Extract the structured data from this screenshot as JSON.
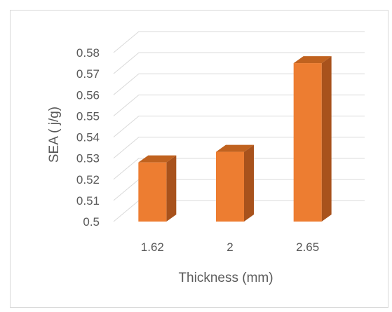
{
  "chart_data": {
    "type": "bar",
    "style": "3d-column",
    "categories": [
      "1.62",
      "2",
      "2.65"
    ],
    "series": [
      {
        "values": [
          0.528,
          0.533,
          0.575
        ]
      }
    ],
    "xlabel": "Thickness (mm)",
    "ylabel": "SEA ( j/g)",
    "ylim": [
      0.5,
      0.58
    ],
    "ytick_step": 0.01,
    "yticks": [
      "0.5",
      "0.51",
      "0.52",
      "0.53",
      "0.54",
      "0.55",
      "0.56",
      "0.57",
      "0.58"
    ],
    "grid": true,
    "legend": "none",
    "colors": {
      "bar_front": "#ED7D31",
      "bar_side": "#A8521C",
      "bar_top": "#C0621F",
      "grid": "#d9d9d9",
      "text": "#595959"
    }
  }
}
